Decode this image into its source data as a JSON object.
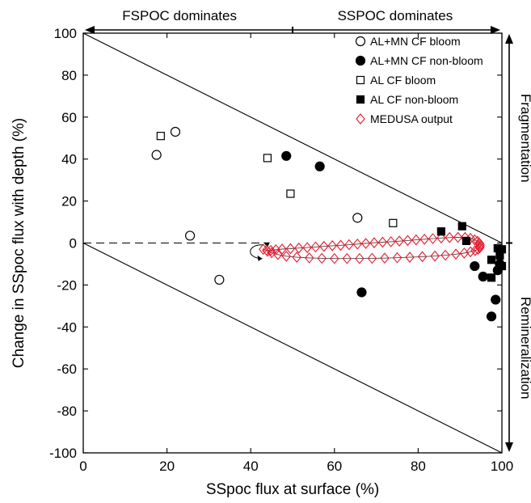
{
  "chart_data": {
    "type": "scatter",
    "xlabel": "SSpoc flux at surface (%)",
    "ylabel": "Change in SSpoc flux with depth (%)",
    "xlim": [
      0,
      100
    ],
    "ylim": [
      -100,
      100
    ],
    "x_ticks": [
      0,
      20,
      40,
      60,
      80,
      100
    ],
    "y_ticks": [
      -100,
      -80,
      -60,
      -40,
      -20,
      0,
      20,
      40,
      60,
      80,
      100
    ],
    "grid": false,
    "legend_position": "top-right",
    "top_annotations": {
      "left": "FSPOC dominates",
      "right": "SSPOC dominates"
    },
    "right_annotations": {
      "upper": "Fragmentation",
      "lower": "Remineralization"
    },
    "reference_lines": [
      {
        "style": "solid",
        "x": [
          0,
          100
        ],
        "y": [
          100,
          0
        ]
      },
      {
        "style": "solid",
        "x": [
          0,
          100
        ],
        "y": [
          0,
          -100
        ]
      },
      {
        "style": "dashed",
        "x": [
          0,
          44
        ],
        "y": [
          0,
          0
        ]
      }
    ],
    "series": [
      {
        "name": "AL+MN CF bloom",
        "marker": "circle-open",
        "color": "#000000",
        "points": [
          [
            17.5,
            42
          ],
          [
            22,
            53
          ],
          [
            25.5,
            3.5
          ],
          [
            32.5,
            -17.5
          ],
          [
            65.5,
            12
          ]
        ]
      },
      {
        "name": "AL+MN CF non-bloom",
        "marker": "circle-filled",
        "color": "#000000",
        "points": [
          [
            48.5,
            41.5
          ],
          [
            56.5,
            36.5
          ],
          [
            66.5,
            -23.5
          ],
          [
            93.5,
            -11
          ],
          [
            95.5,
            -16
          ],
          [
            97.5,
            -35
          ],
          [
            98.5,
            -27
          ],
          [
            99.5,
            -10
          ],
          [
            99,
            -13
          ]
        ]
      },
      {
        "name": "AL CF bloom",
        "marker": "square-open",
        "color": "#000000",
        "points": [
          [
            18.5,
            51
          ],
          [
            44,
            40.5
          ],
          [
            49.5,
            23.5
          ],
          [
            74,
            9.5
          ]
        ]
      },
      {
        "name": "AL CF non-bloom",
        "marker": "square-filled",
        "color": "#000000",
        "points": [
          [
            85.5,
            5.5
          ],
          [
            90.5,
            8
          ],
          [
            91.5,
            1
          ],
          [
            97.5,
            -8
          ],
          [
            97.5,
            -16.5
          ],
          [
            99,
            -2.5
          ],
          [
            99.5,
            -6
          ],
          [
            100,
            -3
          ],
          [
            100,
            -11
          ]
        ]
      },
      {
        "name": "MEDUSA output",
        "marker": "diamond-open",
        "color": "#e8192c",
        "points": [
          [
            43,
            -3
          ],
          [
            43.8,
            -3.4
          ],
          [
            44.8,
            -3.5
          ],
          [
            46,
            -3.2
          ],
          [
            47.5,
            -2.9
          ],
          [
            49.5,
            -2.7
          ],
          [
            51.5,
            -2.4
          ],
          [
            53.5,
            -2.2
          ],
          [
            55.5,
            -1.9
          ],
          [
            57.5,
            -1.6
          ],
          [
            59.5,
            -1.3
          ],
          [
            61.5,
            -1.1
          ],
          [
            63.5,
            -0.8
          ],
          [
            65.5,
            -0.5
          ],
          [
            67.5,
            -0.2
          ],
          [
            69.5,
            0.1
          ],
          [
            71.5,
            0.4
          ],
          [
            73.5,
            0.6
          ],
          [
            75.5,
            0.9
          ],
          [
            77.5,
            1.2
          ],
          [
            79.5,
            1.5
          ],
          [
            81.5,
            1.8
          ],
          [
            83.5,
            2.1
          ],
          [
            85.5,
            2.4
          ],
          [
            87.5,
            2.6
          ],
          [
            89.5,
            2.7
          ],
          [
            91.2,
            2.6
          ],
          [
            92.5,
            2.2
          ],
          [
            93.5,
            1.5
          ],
          [
            94.2,
            0.8
          ],
          [
            94.6,
            0
          ],
          [
            94.8,
            -0.8
          ],
          [
            94.8,
            -1.6
          ],
          [
            94.7,
            -2.3
          ],
          [
            94.3,
            -3
          ],
          [
            93.6,
            -3.6
          ],
          [
            92.5,
            -4.2
          ],
          [
            91,
            -4.8
          ],
          [
            89,
            -5.3
          ],
          [
            86.5,
            -5.8
          ],
          [
            84,
            -6.2
          ],
          [
            81,
            -6.5
          ],
          [
            78,
            -6.8
          ],
          [
            75,
            -7
          ],
          [
            72,
            -7.2
          ],
          [
            69,
            -7.3
          ],
          [
            66,
            -7.4
          ],
          [
            63,
            -7.4
          ],
          [
            60,
            -7.4
          ],
          [
            57,
            -7.3
          ],
          [
            54,
            -7.1
          ],
          [
            51,
            -6.8
          ],
          [
            48.5,
            -6.3
          ],
          [
            46.5,
            -5.5
          ],
          [
            45,
            -4.6
          ],
          [
            44,
            -3.9
          ]
        ]
      }
    ],
    "trajectory_arrows": [
      {
        "x": 40,
        "y": -5
      },
      {
        "x": 44,
        "y": -3
      }
    ]
  }
}
